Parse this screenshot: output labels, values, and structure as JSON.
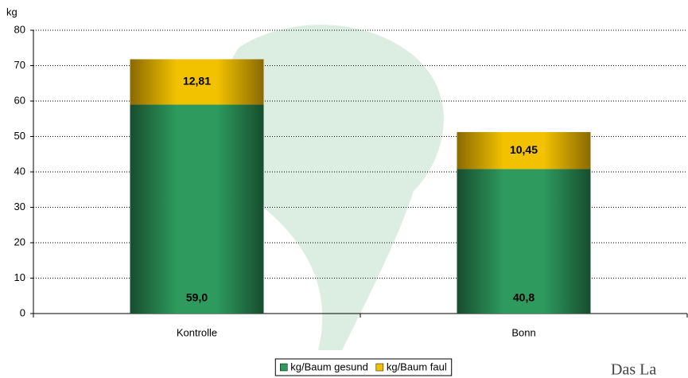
{
  "chart_data": {
    "type": "stacked_bar",
    "y_axis_label": "kg",
    "categories": [
      "Kontrolle",
      "Bonn"
    ],
    "series": [
      {
        "name": "kg/Baum gesund",
        "color": "#2e9a5e",
        "values": [
          59.0,
          40.8
        ],
        "value_labels": [
          "59,0",
          "40,8"
        ]
      },
      {
        "name": "kg/Baum faul",
        "color": "#f2c200",
        "values": [
          12.81,
          10.45
        ],
        "value_labels": [
          "12,81",
          "10,45"
        ]
      }
    ],
    "ylim": [
      0,
      80
    ],
    "yticks": [
      0,
      10,
      20,
      30,
      40,
      50,
      60,
      70,
      80
    ],
    "grid": true,
    "legend": "bottom",
    "logo_text": "Das La"
  }
}
